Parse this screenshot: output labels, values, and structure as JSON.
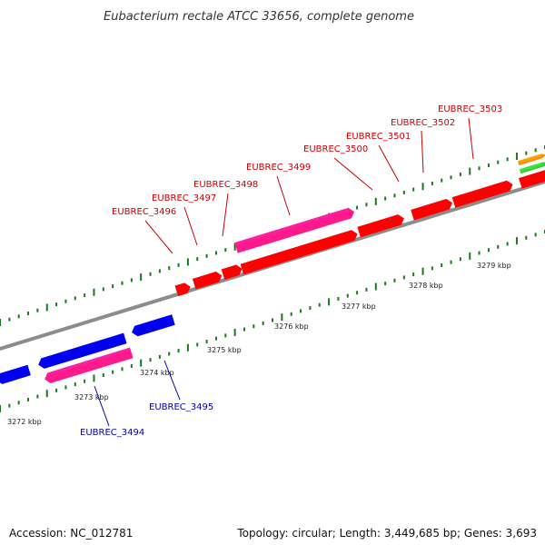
{
  "title": "Eubacterium rectale ATCC 33656, complete genome",
  "footer": {
    "accession": "Accession: NC_012781",
    "summary": "Topology: circular; Length: 3,449,685 bp; Genes: 3,693"
  },
  "colors": {
    "backbone": "#8c8c8c",
    "tick": "#1a7a1a",
    "forward_gene": "#ff0000",
    "reverse_gene": "#0000ee",
    "highlight_gene": "#ff1a8c",
    "forward_label": "#cc0000",
    "reverse_label": "#0000aa",
    "orange_feature": "#ff8c00",
    "green_feature": "#33cc33"
  },
  "scale": {
    "unit": "kbp",
    "ticks": [
      {
        "value": 3272,
        "label": "3272 kbp"
      },
      {
        "value": 3273,
        "label": "3273 kbp"
      },
      {
        "value": 3274,
        "label": "3274 kbp"
      },
      {
        "value": 3275,
        "label": "3275 kbp"
      },
      {
        "value": 3276,
        "label": "3276 kbp"
      },
      {
        "value": 3277,
        "label": "3277 kbp"
      },
      {
        "value": 3278,
        "label": "3278 kbp"
      },
      {
        "value": 3279,
        "label": "3279 kbp"
      }
    ]
  },
  "genes": [
    {
      "id": "EUBREC_3494",
      "strand": "reverse",
      "color": "highlight"
    },
    {
      "id": "EUBREC_3495",
      "strand": "reverse",
      "color": "reverse"
    },
    {
      "id": "EUBREC_3496",
      "strand": "forward",
      "color": "forward"
    },
    {
      "id": "EUBREC_3497",
      "strand": "forward",
      "color": "forward"
    },
    {
      "id": "EUBREC_3498",
      "strand": "forward",
      "color": "forward"
    },
    {
      "id": "EUBREC_3499",
      "strand": "forward",
      "color": "highlight"
    },
    {
      "id": "EUBREC_3500",
      "strand": "forward",
      "color": "forward"
    },
    {
      "id": "EUBREC_3501",
      "strand": "forward",
      "color": "forward"
    },
    {
      "id": "EUBREC_3502",
      "strand": "forward",
      "color": "forward"
    },
    {
      "id": "EUBREC_3503",
      "strand": "forward",
      "color": "forward"
    }
  ]
}
